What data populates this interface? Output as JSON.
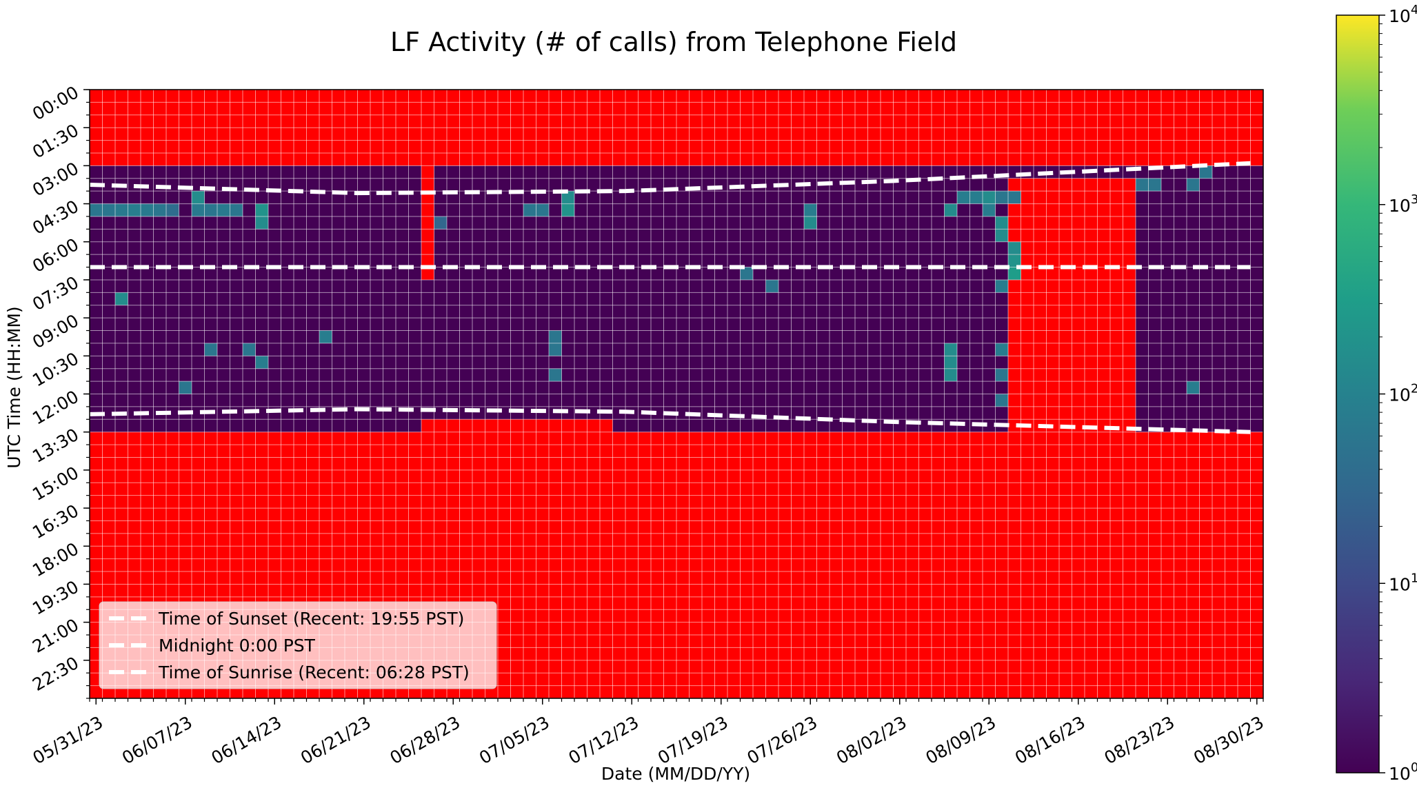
{
  "chart_data": {
    "type": "heatmap",
    "title": "LF Activity (# of calls) from Telephone Field",
    "xlabel": "Date (MM/DD/YY)",
    "ylabel": "UTC Time (HH:MM)",
    "x_start_date": "2023-05-31",
    "x_end_date": "2023-08-30",
    "x_tick_labels": [
      "05/31/23",
      "06/07/23",
      "06/14/23",
      "06/21/23",
      "06/28/23",
      "07/05/23",
      "07/12/23",
      "07/19/23",
      "07/26/23",
      "08/02/23",
      "08/09/23",
      "08/16/23",
      "08/23/23",
      "08/30/23"
    ],
    "y_tick_labels": [
      "00:00",
      "01:30",
      "03:00",
      "04:30",
      "06:00",
      "07:30",
      "09:00",
      "10:30",
      "12:00",
      "13:30",
      "15:00",
      "16:30",
      "18:00",
      "19:30",
      "21:00",
      "22:30"
    ],
    "y_range_hours": [
      0,
      24
    ],
    "colorbar": {
      "scale": "log",
      "range": [
        1,
        10000
      ],
      "tick_labels": [
        {
          "base": "10",
          "exp": "0"
        },
        {
          "base": "10",
          "exp": "1"
        },
        {
          "base": "10",
          "exp": "2"
        },
        {
          "base": "10",
          "exp": "3"
        },
        {
          "base": "10",
          "exp": "4"
        }
      ],
      "colormap": "viridis"
    },
    "no_data_color": "#ff0000",
    "recording_window_utc": {
      "start_hour": 3.0,
      "end_hour": 13.5
    },
    "gaps": [
      {
        "from": "2023-06-26",
        "to": "2023-06-26",
        "start_hour": 0.0,
        "end_hour": 7.5
      },
      {
        "from": "2023-06-26",
        "to": "2023-07-10",
        "start_hour": 13.0,
        "end_hour": 13.5
      },
      {
        "from": "2023-08-11",
        "to": "2023-08-20",
        "start_hour": 3.5,
        "end_hour": 7.5
      },
      {
        "from": "2023-08-11",
        "to": "2023-08-20",
        "start_hour": 7.5,
        "end_hour": 13.5
      }
    ],
    "active_cells": [
      {
        "date": "2023-05-31",
        "start_hour": 4.5,
        "end_hour": 5.0,
        "count": 60
      },
      {
        "date": "2023-06-01",
        "start_hour": 4.5,
        "end_hour": 5.0,
        "count": 60
      },
      {
        "date": "2023-06-02",
        "start_hour": 4.5,
        "end_hour": 5.0,
        "count": 70
      },
      {
        "date": "2023-06-03",
        "start_hour": 4.5,
        "end_hour": 5.0,
        "count": 80
      },
      {
        "date": "2023-06-04",
        "start_hour": 4.5,
        "end_hour": 5.0,
        "count": 70
      },
      {
        "date": "2023-06-05",
        "start_hour": 4.5,
        "end_hour": 5.0,
        "count": 60
      },
      {
        "date": "2023-06-06",
        "start_hour": 4.5,
        "end_hour": 5.0,
        "count": 40
      },
      {
        "date": "2023-06-08",
        "start_hour": 4.0,
        "end_hour": 4.5,
        "count": 150
      },
      {
        "date": "2023-06-08",
        "start_hour": 4.5,
        "end_hour": 5.0,
        "count": 70
      },
      {
        "date": "2023-06-09",
        "start_hour": 4.5,
        "end_hour": 5.0,
        "count": 60
      },
      {
        "date": "2023-06-10",
        "start_hour": 4.5,
        "end_hour": 5.0,
        "count": 70
      },
      {
        "date": "2023-06-11",
        "start_hour": 4.5,
        "end_hour": 5.0,
        "count": 60
      },
      {
        "date": "2023-06-13",
        "start_hour": 4.5,
        "end_hour": 5.0,
        "count": 200
      },
      {
        "date": "2023-06-13",
        "start_hour": 5.0,
        "end_hour": 5.5,
        "count": 150
      },
      {
        "date": "2023-06-02",
        "start_hour": 8.0,
        "end_hour": 8.5,
        "count": 150
      },
      {
        "date": "2023-06-13",
        "start_hour": 10.5,
        "end_hour": 11.0,
        "count": 80
      },
      {
        "date": "2023-06-12",
        "start_hour": 10.0,
        "end_hour": 10.5,
        "count": 60
      },
      {
        "date": "2023-06-09",
        "start_hour": 10.0,
        "end_hour": 10.5,
        "count": 60
      },
      {
        "date": "2023-06-07",
        "start_hour": 11.5,
        "end_hour": 12.0,
        "count": 60
      },
      {
        "date": "2023-06-18",
        "start_hour": 9.5,
        "end_hour": 10.0,
        "count": 80
      },
      {
        "date": "2023-06-27",
        "start_hour": 5.0,
        "end_hour": 5.5,
        "count": 30
      },
      {
        "date": "2023-07-07",
        "start_hour": 4.0,
        "end_hour": 4.5,
        "count": 150
      },
      {
        "date": "2023-07-07",
        "start_hour": 4.5,
        "end_hour": 5.0,
        "count": 200
      },
      {
        "date": "2023-07-05",
        "start_hour": 4.5,
        "end_hour": 5.0,
        "count": 60
      },
      {
        "date": "2023-07-04",
        "start_hour": 4.5,
        "end_hour": 5.0,
        "count": 60
      },
      {
        "date": "2023-07-06",
        "start_hour": 9.5,
        "end_hour": 10.0,
        "count": 60
      },
      {
        "date": "2023-07-06",
        "start_hour": 10.0,
        "end_hour": 10.5,
        "count": 60
      },
      {
        "date": "2023-07-06",
        "start_hour": 11.0,
        "end_hour": 11.5,
        "count": 60
      },
      {
        "date": "2023-07-26",
        "start_hour": 4.5,
        "end_hour": 5.0,
        "count": 80
      },
      {
        "date": "2023-07-26",
        "start_hour": 5.0,
        "end_hour": 5.5,
        "count": 150
      },
      {
        "date": "2023-07-21",
        "start_hour": 7.0,
        "end_hour": 7.5,
        "count": 60
      },
      {
        "date": "2023-07-23",
        "start_hour": 7.5,
        "end_hour": 8.0,
        "count": 60
      },
      {
        "date": "2023-08-06",
        "start_hour": 4.5,
        "end_hour": 5.0,
        "count": 150
      },
      {
        "date": "2023-08-06",
        "start_hour": 10.0,
        "end_hour": 10.5,
        "count": 150
      },
      {
        "date": "2023-08-06",
        "start_hour": 10.5,
        "end_hour": 11.0,
        "count": 150
      },
      {
        "date": "2023-08-06",
        "start_hour": 11.0,
        "end_hour": 11.5,
        "count": 150
      },
      {
        "date": "2023-08-07",
        "start_hour": 4.0,
        "end_hour": 4.5,
        "count": 80
      },
      {
        "date": "2023-08-08",
        "start_hour": 4.0,
        "end_hour": 4.5,
        "count": 80
      },
      {
        "date": "2023-08-09",
        "start_hour": 4.0,
        "end_hour": 4.5,
        "count": 150
      },
      {
        "date": "2023-08-09",
        "start_hour": 4.5,
        "end_hour": 5.0,
        "count": 80
      },
      {
        "date": "2023-08-10",
        "start_hour": 4.0,
        "end_hour": 4.5,
        "count": 60
      },
      {
        "date": "2023-08-10",
        "start_hour": 5.0,
        "end_hour": 5.5,
        "count": 150
      },
      {
        "date": "2023-08-10",
        "start_hour": 5.5,
        "end_hour": 6.0,
        "count": 150
      },
      {
        "date": "2023-08-10",
        "start_hour": 7.5,
        "end_hour": 8.0,
        "count": 80
      },
      {
        "date": "2023-08-11",
        "start_hour": 4.0,
        "end_hour": 4.5,
        "count": 60
      },
      {
        "date": "2023-08-11",
        "start_hour": 6.0,
        "end_hour": 6.5,
        "count": 150
      },
      {
        "date": "2023-08-11",
        "start_hour": 6.5,
        "end_hour": 7.0,
        "count": 200
      },
      {
        "date": "2023-08-11",
        "start_hour": 7.0,
        "end_hour": 7.5,
        "count": 300
      },
      {
        "date": "2023-08-10",
        "start_hour": 10.0,
        "end_hour": 10.5,
        "count": 80
      },
      {
        "date": "2023-08-10",
        "start_hour": 11.0,
        "end_hour": 11.5,
        "count": 60
      },
      {
        "date": "2023-08-10",
        "start_hour": 12.0,
        "end_hour": 12.5,
        "count": 60
      },
      {
        "date": "2023-08-21",
        "start_hour": 3.5,
        "end_hour": 4.0,
        "count": 60
      },
      {
        "date": "2023-08-22",
        "start_hour": 3.5,
        "end_hour": 4.0,
        "count": 60
      },
      {
        "date": "2023-08-25",
        "start_hour": 3.5,
        "end_hour": 4.0,
        "count": 60
      },
      {
        "date": "2023-08-26",
        "start_hour": 3.0,
        "end_hour": 3.5,
        "count": 60
      },
      {
        "date": "2023-08-25",
        "start_hour": 11.5,
        "end_hour": 12.0,
        "count": 80
      }
    ],
    "lines": [
      {
        "name": "Time of Sunset (Recent: 19:55 PST)",
        "style": "dashed",
        "color": "#ffffff",
        "points": [
          [
            "2023-05-31",
            3.75
          ],
          [
            "2023-06-21",
            4.08
          ],
          [
            "2023-07-12",
            4.0
          ],
          [
            "2023-08-02",
            3.6
          ],
          [
            "2023-08-30",
            2.9
          ]
        ]
      },
      {
        "name": "Midnight 0:00 PST",
        "style": "dashed",
        "color": "#ffffff",
        "points": [
          [
            "2023-05-31",
            7.0
          ],
          [
            "2023-08-30",
            7.0
          ]
        ]
      },
      {
        "name": "Time of Sunrise (Recent: 06:28 PST)",
        "style": "dashed",
        "color": "#ffffff",
        "points": [
          [
            "2023-05-31",
            12.8
          ],
          [
            "2023-06-21",
            12.6
          ],
          [
            "2023-07-12",
            12.7
          ],
          [
            "2023-08-02",
            13.1
          ],
          [
            "2023-08-30",
            13.5
          ]
        ]
      }
    ],
    "legend": {
      "location": "lower-left",
      "entries": [
        "Time of Sunset (Recent: 19:55 PST)",
        "Midnight 0:00 PST",
        "Time of Sunrise (Recent: 06:28 PST)"
      ]
    }
  }
}
